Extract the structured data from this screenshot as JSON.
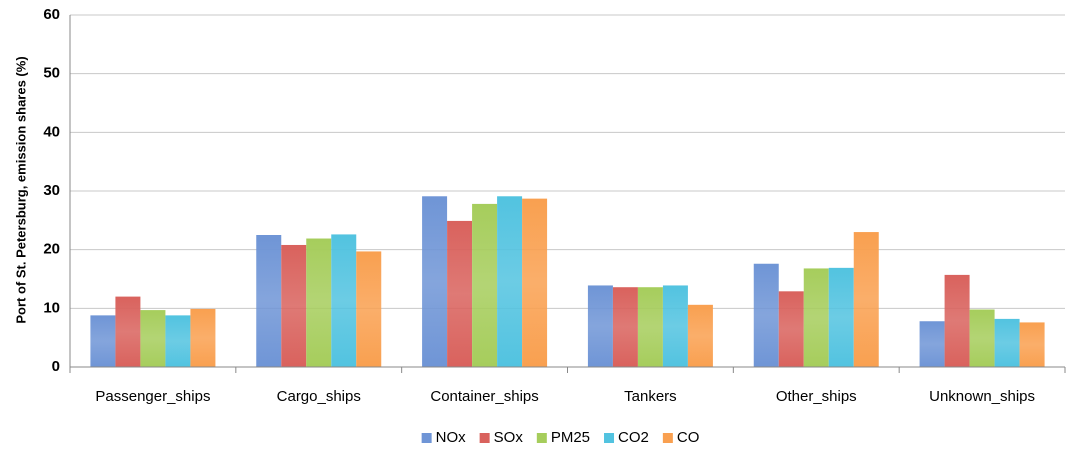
{
  "chart_data": {
    "type": "bar",
    "y_label": "Port of St. Petersburg, emission shares (%)",
    "categories": [
      "Passenger_ships",
      "Cargo_ships",
      "Container_ships",
      "Tankers",
      "Other_ships",
      "Unknown_ships"
    ],
    "series": [
      {
        "name": "NOx",
        "color": "#6f95d6",
        "values": [
          8.8,
          22.5,
          29.1,
          13.9,
          17.6,
          7.8
        ]
      },
      {
        "name": "SOx",
        "color": "#d9625d",
        "values": [
          12.0,
          20.8,
          24.9,
          13.6,
          12.9,
          15.7
        ]
      },
      {
        "name": "PM25",
        "color": "#a6cd5c",
        "values": [
          9.7,
          21.9,
          27.8,
          13.6,
          16.8,
          9.8
        ]
      },
      {
        "name": "CO2",
        "color": "#52c3e0",
        "values": [
          8.8,
          22.6,
          29.1,
          13.9,
          16.9,
          8.2
        ]
      },
      {
        "name": "CO",
        "color": "#f9a050",
        "values": [
          9.9,
          19.7,
          28.7,
          10.6,
          23.0,
          7.6
        ]
      }
    ],
    "ylim": [
      0,
      60
    ],
    "yticks": [
      0,
      10,
      20,
      30,
      40,
      50,
      60
    ],
    "grid": true,
    "legend": "bottom"
  }
}
